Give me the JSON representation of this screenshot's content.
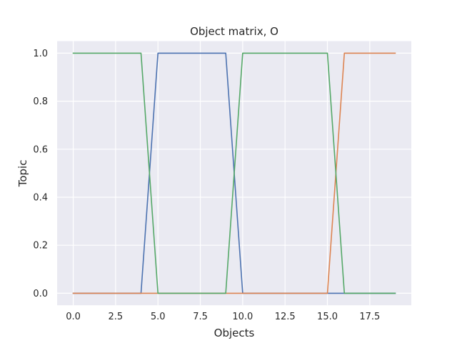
{
  "chart_data": {
    "type": "line",
    "title": "Object matrix, O",
    "xlabel": "Objects",
    "ylabel": "Topic",
    "xlim": [
      -0.95,
      19.95
    ],
    "ylim": [
      -0.05,
      1.05
    ],
    "xticks": [
      0.0,
      2.5,
      5.0,
      7.5,
      10.0,
      12.5,
      15.0,
      17.5
    ],
    "xtick_labels": [
      "0.0",
      "2.5",
      "5.0",
      "7.5",
      "10.0",
      "12.5",
      "15.0",
      "17.5"
    ],
    "yticks": [
      0.0,
      0.2,
      0.4,
      0.6,
      0.8,
      1.0
    ],
    "ytick_labels": [
      "0.0",
      "0.2",
      "0.4",
      "0.6",
      "0.8",
      "1.0"
    ],
    "grid": true,
    "legend": "none",
    "x": [
      0,
      1,
      2,
      3,
      4,
      5,
      6,
      7,
      8,
      9,
      10,
      11,
      12,
      13,
      14,
      15,
      16,
      17,
      18,
      19
    ],
    "series": [
      {
        "color": "#4c72b0",
        "values": [
          0,
          0,
          0,
          0,
          0,
          1,
          1,
          1,
          1,
          1,
          0,
          0,
          0,
          0,
          0,
          0,
          0,
          0,
          0,
          0
        ]
      },
      {
        "color": "#dd8452",
        "values": [
          0,
          0,
          0,
          0,
          0,
          0,
          0,
          0,
          0,
          0,
          0,
          0,
          0,
          0,
          0,
          0,
          1,
          1,
          1,
          1
        ]
      },
      {
        "color": "#55a868",
        "values": [
          1,
          1,
          1,
          1,
          1,
          0,
          0,
          0,
          0,
          0,
          1,
          1,
          1,
          1,
          1,
          1,
          0,
          0,
          0,
          0
        ]
      }
    ]
  }
}
